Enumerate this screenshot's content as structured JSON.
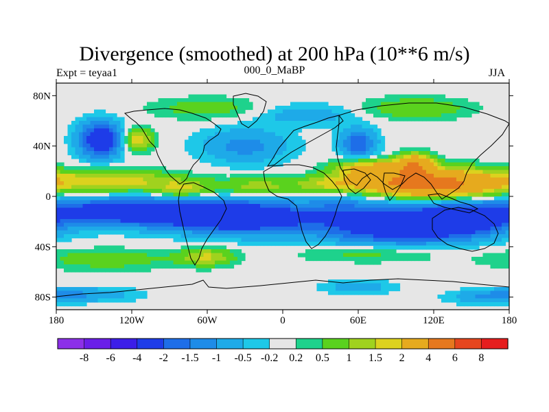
{
  "header": {
    "title": "Divergence (smoothed) at 200 hPa (10**6 m/s)",
    "left_label": "Expt = teyaa1",
    "center_label": "000_0_MaBP",
    "right_label": "JJA"
  },
  "chart_data": {
    "type": "heatmap",
    "title": "Divergence (smoothed) at 200 hPa (10**6 m/s)",
    "variable": "Divergence (smoothed)",
    "level": "200 hPa",
    "units": "10**6 m/s",
    "season": "JJA",
    "experiment": "teyaa1",
    "period": "000_0_MaBP",
    "x_range": [
      -180,
      180
    ],
    "y_range": [
      -90,
      90
    ],
    "x_ticks": [
      {
        "value": -180,
        "label": "180"
      },
      {
        "value": -120,
        "label": "120W"
      },
      {
        "value": -60,
        "label": "60W"
      },
      {
        "value": 0,
        "label": "0"
      },
      {
        "value": 60,
        "label": "60E"
      },
      {
        "value": 120,
        "label": "120E"
      },
      {
        "value": 180,
        "label": "180"
      }
    ],
    "y_ticks": [
      {
        "value": 80,
        "label": "80N"
      },
      {
        "value": 40,
        "label": "40N"
      },
      {
        "value": 0,
        "label": "0"
      },
      {
        "value": -40,
        "label": "40S"
      },
      {
        "value": -80,
        "label": "80S"
      }
    ],
    "contour_levels": [
      "-8",
      "-6",
      "-4",
      "-2",
      "-1.5",
      "-1",
      "-0.5",
      "-0.2",
      "0.2",
      "0.5",
      "1",
      "1.5",
      "2",
      "4",
      "6",
      "8"
    ],
    "colorbar_colors": [
      "#8c30e8",
      "#6a1ee8",
      "#3c1ee8",
      "#1e3ce8",
      "#1e6ee8",
      "#1e8ce8",
      "#1eaae8",
      "#1ec8e8",
      "#e6e6e6",
      "#1ed28c",
      "#5ad21e",
      "#a0d21e",
      "#dcd21e",
      "#e6aa1e",
      "#e6781e",
      "#e6461e",
      "#e61e1e"
    ],
    "features": [
      {
        "lon": -110,
        "lat": -12,
        "value": -3.0,
        "spread_lon": 60,
        "spread_lat": 8
      },
      {
        "lon": -30,
        "lat": -18,
        "value": -2.5,
        "spread_lon": 40,
        "spread_lat": 9
      },
      {
        "lon": 85,
        "lat": -25,
        "value": -2.5,
        "spread_lon": 40,
        "spread_lat": 10
      },
      {
        "lon": 140,
        "lat": -18,
        "value": -2.5,
        "spread_lon": 30,
        "spread_lat": 10
      },
      {
        "lon": 50,
        "lat": -10,
        "value": -1.0,
        "spread_lon": 25,
        "spread_lat": 8
      },
      {
        "lon": -140,
        "lat": 12,
        "value": 2.0,
        "spread_lon": 40,
        "spread_lat": 6
      },
      {
        "lon": 130,
        "lat": 10,
        "value": 4.0,
        "spread_lon": 30,
        "spread_lat": 8
      },
      {
        "lon": 90,
        "lat": 10,
        "value": 2.5,
        "spread_lon": 25,
        "spread_lat": 6
      },
      {
        "lon": -20,
        "lat": 8,
        "value": 1.2,
        "spread_lon": 25,
        "spread_lat": 5
      },
      {
        "lon": -80,
        "lat": 5,
        "value": 1.5,
        "spread_lon": 15,
        "spread_lat": 5
      },
      {
        "lon": 40,
        "lat": 10,
        "value": 1.5,
        "spread_lon": 20,
        "spread_lat": 5
      },
      {
        "lon": 70,
        "lat": 22,
        "value": 2.5,
        "spread_lon": 20,
        "spread_lat": 5
      },
      {
        "lon": 105,
        "lat": 25,
        "value": 3.5,
        "spread_lon": 10,
        "spread_lat": 6
      },
      {
        "lon": -115,
        "lat": 45,
        "value": 2.0,
        "spread_lon": 8,
        "spread_lat": 6
      },
      {
        "lon": -145,
        "lat": 45,
        "value": -3.0,
        "spread_lon": 12,
        "spread_lat": 10
      },
      {
        "lon": -30,
        "lat": 40,
        "value": -1.2,
        "spread_lon": 25,
        "spread_lat": 10
      },
      {
        "lon": 60,
        "lat": 42,
        "value": -2.0,
        "spread_lon": 10,
        "spread_lat": 8
      },
      {
        "lon": 105,
        "lat": 70,
        "value": 1.0,
        "spread_lon": 30,
        "spread_lat": 6
      },
      {
        "lon": -60,
        "lat": 70,
        "value": 0.8,
        "spread_lon": 30,
        "spread_lat": 6
      },
      {
        "lon": 20,
        "lat": 65,
        "value": -0.8,
        "spread_lon": 30,
        "spread_lat": 6
      },
      {
        "lon": -140,
        "lat": -50,
        "value": 0.8,
        "spread_lon": 40,
        "spread_lat": 6
      },
      {
        "lon": -60,
        "lat": -48,
        "value": 1.5,
        "spread_lon": 15,
        "spread_lat": 5
      },
      {
        "lon": 70,
        "lat": -45,
        "value": 0.8,
        "spread_lon": 40,
        "spread_lat": 5
      },
      {
        "lon": -160,
        "lat": -78,
        "value": -1.0,
        "spread_lon": 30,
        "spread_lat": 4
      },
      {
        "lon": 60,
        "lat": -72,
        "value": -0.8,
        "spread_lon": 20,
        "spread_lat": 4
      },
      {
        "lon": 160,
        "lat": -80,
        "value": -0.8,
        "spread_lon": 20,
        "spread_lat": 4
      }
    ]
  }
}
